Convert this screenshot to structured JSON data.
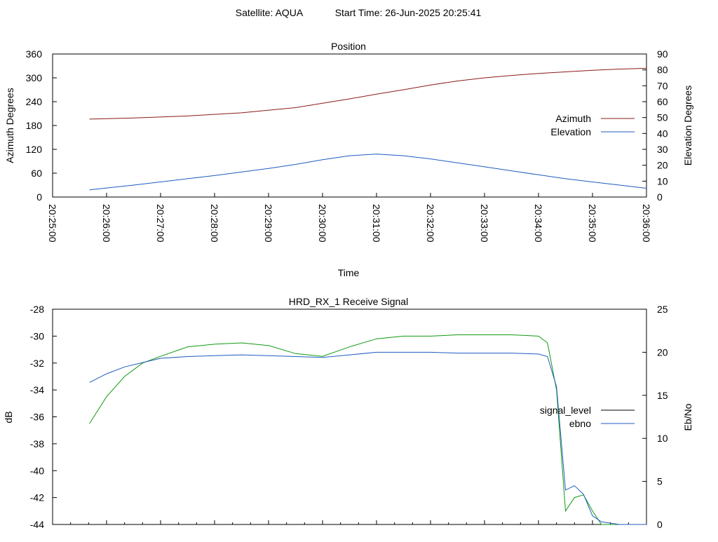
{
  "header": {
    "satellite_label": "Satellite: AQUA",
    "start_time_label": "Start Time: 26-Jun-2025 20:25:41"
  },
  "colors": {
    "azimuth": "#8b1a1a",
    "elevation": "#1f5bbf",
    "signal_level": "#109910",
    "ebno": "#1f5bbf"
  },
  "chart_data": [
    {
      "type": "line",
      "title": "Position",
      "xlabel": "Time",
      "ylabel": "Azimuth Degrees",
      "y2label": "Elevation Degrees",
      "ylim": [
        0,
        360
      ],
      "y2lim": [
        0,
        90
      ],
      "yticks": [
        "0",
        "60",
        "120",
        "180",
        "240",
        "300",
        "360"
      ],
      "y2ticks": [
        "0",
        "10",
        "20",
        "30",
        "40",
        "50",
        "60",
        "70",
        "80",
        "90"
      ],
      "xlim": [
        "20:25:00",
        "20:36:00"
      ],
      "xticks": [
        "20:25:00",
        "20:26:00",
        "20:27:00",
        "20:28:00",
        "20:29:00",
        "20:30:00",
        "20:31:00",
        "20:32:00",
        "20:33:00",
        "20:34:00",
        "20:35:00",
        "20:36:00"
      ],
      "grid": false,
      "legend": "right",
      "series": [
        {
          "name": "Azimuth",
          "axis": "left",
          "x": [
            "20:25:41",
            "20:26:30",
            "20:27:30",
            "20:28:30",
            "20:29:30",
            "20:30:00",
            "20:30:30",
            "20:31:00",
            "20:31:30",
            "20:32:00",
            "20:32:30",
            "20:33:00",
            "20:33:30",
            "20:34:00",
            "20:34:30",
            "20:35:00",
            "20:35:30",
            "20:36:00"
          ],
          "values": [
            196,
            199,
            204,
            212,
            225,
            236,
            247,
            259,
            270,
            282,
            292,
            300,
            306,
            311,
            315,
            319,
            322,
            324
          ]
        },
        {
          "name": "Elevation",
          "axis": "right",
          "x": [
            "20:25:41",
            "20:26:30",
            "20:27:30",
            "20:28:00",
            "20:29:00",
            "20:29:30",
            "20:30:00",
            "20:30:30",
            "20:31:00",
            "20:31:30",
            "20:32:00",
            "20:32:30",
            "20:33:00",
            "20:33:30",
            "20:34:00",
            "20:34:30",
            "20:35:00",
            "20:35:30",
            "20:36:00"
          ],
          "values": [
            4.5,
            7.5,
            11.5,
            13.5,
            18.0,
            20.5,
            23.5,
            26.0,
            27.0,
            26.0,
            24.0,
            21.5,
            19.0,
            16.5,
            14.0,
            11.5,
            9.5,
            7.5,
            5.5
          ]
        }
      ]
    },
    {
      "type": "line",
      "title": "HRD_RX_1 Receive Signal",
      "ylabel": "dB",
      "y2label": "Eb/No",
      "ylim": [
        -44,
        -28
      ],
      "y2lim": [
        0,
        25
      ],
      "yticks": [
        "-28",
        "-30",
        "-32",
        "-34",
        "-36",
        "-38",
        "-40",
        "-42",
        "-44"
      ],
      "y2ticks": [
        "0",
        "5",
        "10",
        "15",
        "20",
        "25"
      ],
      "xlim": [
        "20:25:00",
        "20:36:00"
      ],
      "grid": false,
      "legend": "right",
      "series": [
        {
          "name": "signal_level",
          "axis": "left",
          "x": [
            "20:25:41",
            "20:26:00",
            "20:26:20",
            "20:26:40",
            "20:27:00",
            "20:27:30",
            "20:28:00",
            "20:28:30",
            "20:29:00",
            "20:29:30",
            "20:30:00",
            "20:30:30",
            "20:31:00",
            "20:31:30",
            "20:32:00",
            "20:32:30",
            "20:33:00",
            "20:33:30",
            "20:34:00",
            "20:34:10",
            "20:34:20",
            "20:34:30",
            "20:34:40",
            "20:34:50",
            "20:35:00",
            "20:35:10",
            "20:35:30",
            "20:36:00"
          ],
          "values": [
            -36.5,
            -34.5,
            -33.0,
            -32.0,
            -31.5,
            -30.8,
            -30.6,
            -30.5,
            -30.7,
            -31.3,
            -31.5,
            -30.8,
            -30.2,
            -30.0,
            -30.0,
            -29.9,
            -29.9,
            -29.9,
            -30.0,
            -30.5,
            -34.0,
            -43.0,
            -42.0,
            -41.8,
            -43.0,
            -44.0,
            -44.0,
            -44.0
          ]
        },
        {
          "name": "ebno",
          "axis": "right",
          "x": [
            "20:25:41",
            "20:26:00",
            "20:26:20",
            "20:26:40",
            "20:27:00",
            "20:27:30",
            "20:28:00",
            "20:28:30",
            "20:29:00",
            "20:29:30",
            "20:30:00",
            "20:30:30",
            "20:31:00",
            "20:31:30",
            "20:32:00",
            "20:32:30",
            "20:33:00",
            "20:33:30",
            "20:34:00",
            "20:34:10",
            "20:34:20",
            "20:34:30",
            "20:34:40",
            "20:34:50",
            "20:35:00",
            "20:35:10",
            "20:35:30",
            "20:36:00"
          ],
          "values": [
            16.5,
            17.5,
            18.3,
            18.8,
            19.3,
            19.5,
            19.6,
            19.7,
            19.6,
            19.5,
            19.4,
            19.7,
            20.0,
            20.0,
            20.0,
            19.9,
            19.9,
            19.9,
            19.8,
            19.5,
            16.0,
            4.0,
            4.5,
            3.5,
            1.0,
            0.3,
            0.0,
            0.0
          ]
        }
      ]
    }
  ]
}
